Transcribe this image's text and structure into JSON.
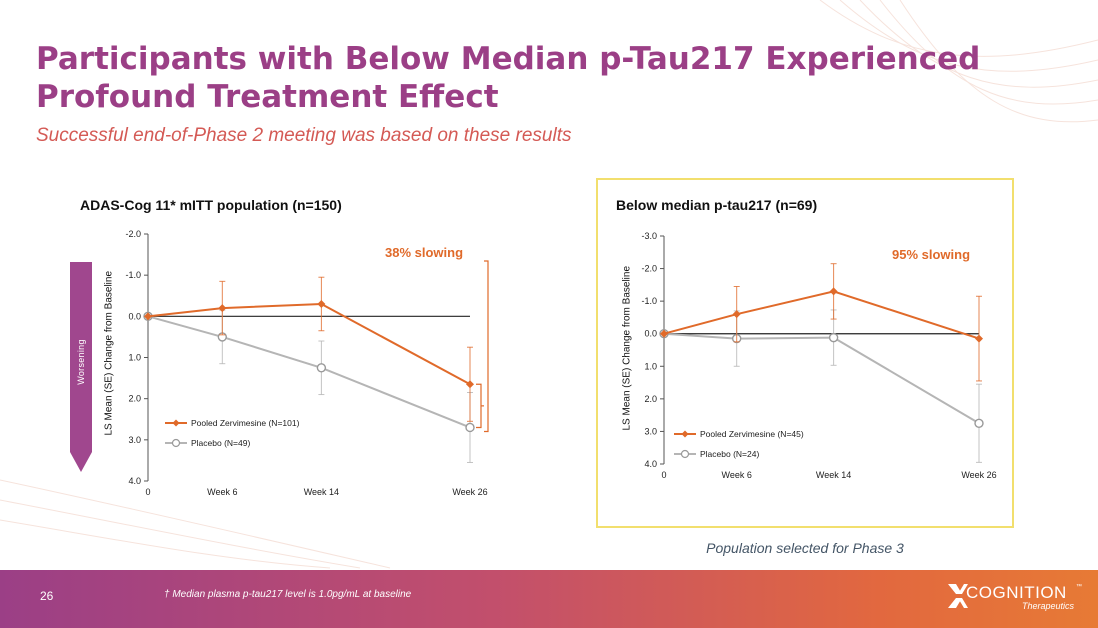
{
  "slide": {
    "title": "Participants with Below Median p-Tau217 Experienced Profound Treatment Effect",
    "subtitle": "Successful end-of-Phase 2 meeting was based on these results",
    "caption": "Population selected for Phase 3",
    "page_number": "26",
    "footnote": "† Median plasma p-tau217 level is 1.0pg/mL at baseline",
    "worsening_label": "Worsening"
  },
  "logo": {
    "name": "COGNITION",
    "tm": "™",
    "sub": "Therapeutics"
  },
  "colors": {
    "title": "#9b3f86",
    "subtitle": "#d45a55",
    "treatment": "#e06a2a",
    "placebo": "#b5b5b5",
    "highlight": "#f2df6e",
    "worsening_bar": "#a0478e"
  },
  "chart_data": [
    {
      "type": "line",
      "title": "ADAS-Cog 11* mITT population (n=150)",
      "ylabel": "LS Mean (SE) Change from Baseline",
      "categories": [
        "0",
        "Week 6",
        "Week 14",
        "Week 26"
      ],
      "x_weeks": [
        0,
        6,
        14,
        26
      ],
      "ylim": [
        -2.0,
        4.0
      ],
      "yticks": [
        -2.0,
        -1.0,
        0.0,
        1.0,
        2.0,
        3.0,
        4.0
      ],
      "ytick_labels": [
        "-2.0",
        "-1.0",
        "0.0",
        "1.0",
        "2.0",
        "3.0",
        "4.0"
      ],
      "y_inverted": true,
      "annotation": "38% slowing",
      "series": [
        {
          "name": "Pooled Zervimesine (N=101)",
          "values": [
            0.0,
            -0.2,
            -0.3,
            1.65
          ],
          "se": [
            0,
            0.65,
            0.65,
            0.9
          ]
        },
        {
          "name": "Placebo (N=49)",
          "values": [
            0.0,
            0.5,
            1.25,
            2.7
          ],
          "se": [
            0,
            0.65,
            0.65,
            0.85
          ]
        }
      ]
    },
    {
      "type": "line",
      "title": "Below median p-tau217 (n=69)",
      "ylabel": "LS Mean (SE) Change from Baseline",
      "categories": [
        "0",
        "Week 6",
        "Week 14",
        "Week 26"
      ],
      "x_weeks": [
        0,
        6,
        14,
        26
      ],
      "ylim": [
        -3.0,
        4.0
      ],
      "yticks": [
        -3.0,
        -2.0,
        -1.0,
        0.0,
        1.0,
        2.0,
        3.0,
        4.0
      ],
      "ytick_labels": [
        "-3.0",
        "-2.0",
        "-1.0",
        "0.0",
        "1.0",
        "2.0",
        "3.0",
        "4.0"
      ],
      "y_inverted": true,
      "annotation": "95% slowing",
      "series": [
        {
          "name": "Pooled Zervimesine (N=45)",
          "values": [
            0.0,
            -0.6,
            -1.3,
            0.15
          ],
          "se": [
            0,
            0.85,
            0.85,
            1.3
          ]
        },
        {
          "name": "Placebo (N=24)",
          "values": [
            0.0,
            0.15,
            0.12,
            2.75
          ],
          "se": [
            0,
            0.85,
            0.85,
            1.2
          ]
        }
      ]
    }
  ]
}
